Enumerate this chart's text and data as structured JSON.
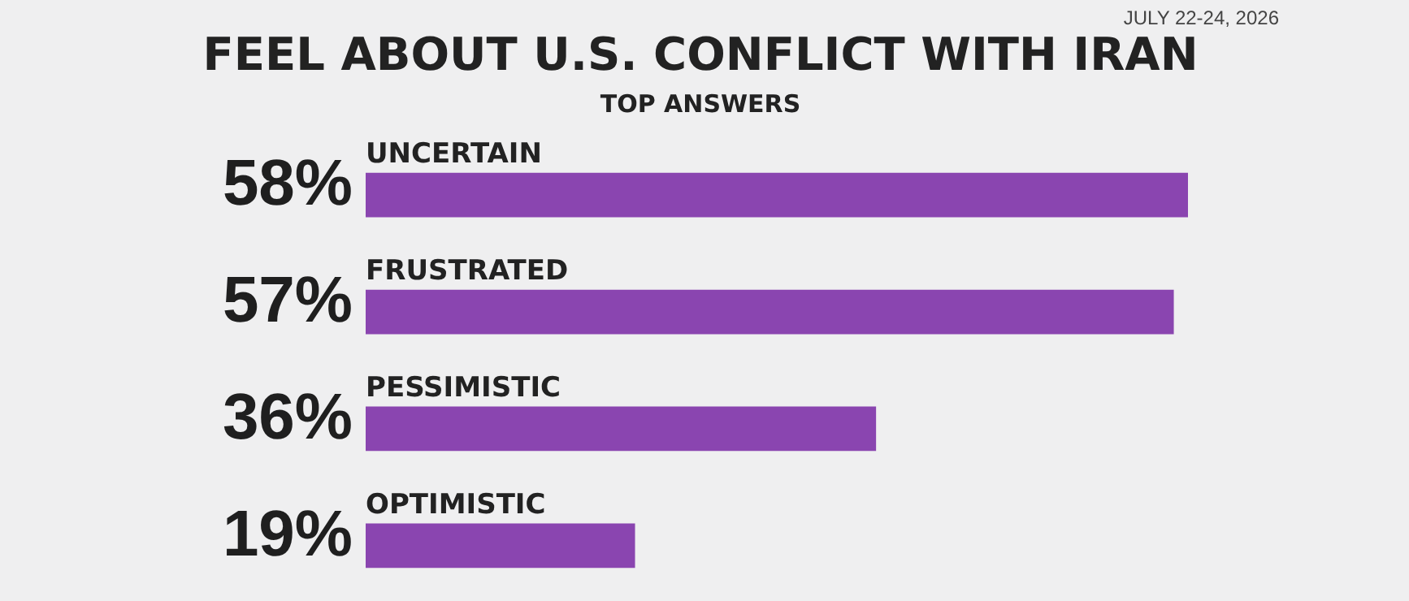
{
  "chart_data": {
    "type": "bar",
    "orientation": "horizontal",
    "title": "FEEL ABOUT U.S. CONFLICT WITH IRAN",
    "subtitle": "TOP ANSWERS",
    "annotations": [
      "JULY 22-24, 2026"
    ],
    "categories": [
      "UNCERTAIN",
      "FRUSTRATED",
      "PESSIMISTIC",
      "OPTIMISTIC"
    ],
    "values": [
      58,
      57,
      36,
      19
    ],
    "value_labels": [
      "58%",
      "57%",
      "36%",
      "19%"
    ],
    "color": "#8a45b0"
  }
}
